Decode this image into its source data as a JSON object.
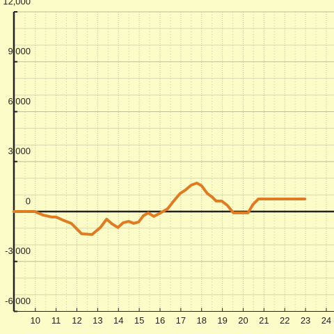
{
  "chart_data": {
    "type": "line",
    "x": [
      8.97,
      9.97,
      10.37,
      10.8,
      11.0,
      11.3,
      11.73,
      12.23,
      12.73,
      13.13,
      13.43,
      13.7,
      13.97,
      14.23,
      14.5,
      14.73,
      14.97,
      15.2,
      15.43,
      15.7,
      16.03,
      16.37,
      16.63,
      16.97,
      17.23,
      17.5,
      17.77,
      18.0,
      18.27,
      18.5,
      18.7,
      18.97,
      19.23,
      19.53,
      19.9,
      20.23,
      20.47,
      20.73,
      20.97,
      22.97
    ],
    "series": [
      {
        "color": "#e07b22",
        "values": [
          0,
          0,
          -210,
          -330,
          -330,
          -500,
          -710,
          -1340,
          -1380,
          -960,
          -460,
          -750,
          -960,
          -670,
          -590,
          -710,
          -630,
          -250,
          -80,
          -290,
          -80,
          170,
          590,
          1090,
          1300,
          1590,
          1710,
          1550,
          1090,
          880,
          630,
          630,
          380,
          -80,
          -80,
          -80,
          420,
          750,
          750,
          750
        ]
      }
    ],
    "xlim": [
      8.97,
      24.37
    ],
    "ylim": [
      -6000,
      12000
    ],
    "xticks": [
      10,
      11,
      12,
      13,
      14,
      15,
      16,
      17,
      18,
      19,
      20,
      21,
      22,
      23,
      24
    ],
    "yticks": [
      {
        "value": -6000,
        "label": "-6,000"
      },
      {
        "value": -3000,
        "label": "-3,000"
      },
      0,
      {
        "value": 3000,
        "label": "3,000"
      },
      {
        "value": 6000,
        "label": "6,000"
      },
      {
        "value": 9000,
        "label": "9,000"
      },
      {
        "value": 12000,
        "label": "12,000"
      }
    ],
    "yminorticks": [
      -5000,
      -4000,
      -2000,
      -1000,
      1000,
      2000,
      4000,
      5000,
      7000,
      8000,
      10000,
      11000
    ],
    "xminorticks": [
      9.5,
      10.5,
      11.5,
      12.5,
      13.5,
      14.5,
      15.5,
      16.5,
      17.5,
      18.5,
      19.5,
      20.5,
      21.5,
      22.5,
      23.5
    ],
    "grid": true
  }
}
